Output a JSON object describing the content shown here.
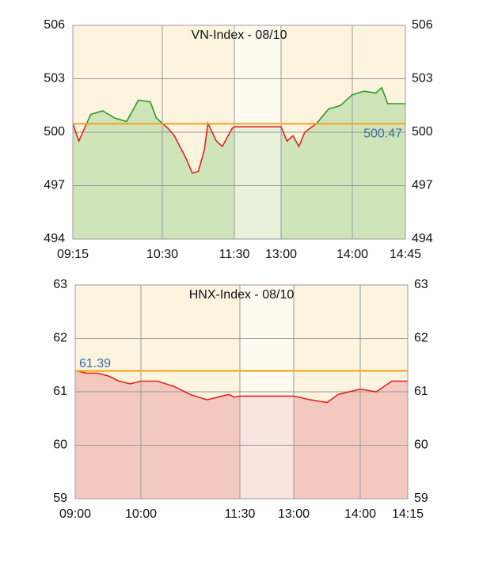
{
  "chart_data": [
    {
      "type": "line",
      "title": "VN-Index - 08/10",
      "x": [
        "09:15",
        "09:20",
        "09:30",
        "09:40",
        "09:50",
        "10:00",
        "10:10",
        "10:20",
        "10:25",
        "10:30",
        "10:35",
        "10:40",
        "10:50",
        "10:55",
        "11:00",
        "11:05",
        "11:08",
        "11:15",
        "11:20",
        "11:28",
        "11:30",
        "13:00",
        "13:05",
        "13:10",
        "13:15",
        "13:20",
        "13:30",
        "13:40",
        "13:50",
        "14:00",
        "14:10",
        "14:20",
        "14:25",
        "14:30",
        "14:45"
      ],
      "values": [
        500.5,
        499.5,
        501.0,
        501.2,
        500.8,
        500.6,
        501.8,
        501.7,
        500.8,
        500.5,
        500.2,
        499.8,
        498.5,
        497.7,
        497.8,
        499.0,
        500.5,
        499.5,
        499.2,
        500.2,
        500.3,
        500.3,
        499.5,
        499.8,
        499.2,
        500.0,
        500.5,
        501.3,
        501.5,
        502.1,
        502.3,
        502.2,
        502.5,
        501.6,
        501.6
      ],
      "reference": 500.47,
      "up_color": "#2e9a22",
      "down_color": "#e3231c",
      "fill_color": "#cfe5b9",
      "reference_color": "#f2a21f",
      "ylim": [
        494,
        506
      ],
      "yticks": [
        494,
        497,
        500,
        503,
        506
      ],
      "xticks": [
        "09:15",
        "10:30",
        "11:30",
        "13:00",
        "14:00",
        "14:45"
      ],
      "grid": true
    },
    {
      "type": "line",
      "title": "HNX-Index - 08/10",
      "x": [
        "09:00",
        "09:10",
        "09:20",
        "09:30",
        "09:40",
        "09:50",
        "10:00",
        "10:15",
        "10:30",
        "10:45",
        "11:00",
        "11:10",
        "11:20",
        "11:25",
        "11:30",
        "13:00",
        "13:15",
        "13:30",
        "13:40",
        "13:50",
        "14:00",
        "14:05",
        "14:10",
        "14:15"
      ],
      "values": [
        61.4,
        61.35,
        61.35,
        61.3,
        61.2,
        61.15,
        61.2,
        61.2,
        61.1,
        60.95,
        60.85,
        60.9,
        60.95,
        60.9,
        60.92,
        60.92,
        60.85,
        60.8,
        60.95,
        61.0,
        61.05,
        61.0,
        61.2,
        61.2
      ],
      "reference": 61.39,
      "up_color": "#2e9a22",
      "down_color": "#e3231c",
      "fill_color": "#f3c9bf",
      "reference_color": "#f2a21f",
      "ylim": [
        59,
        63
      ],
      "yticks": [
        59,
        60,
        61,
        62,
        63
      ],
      "xticks": [
        "09:00",
        "10:00",
        "11:30",
        "13:00",
        "14:00",
        "14:15"
      ],
      "grid": true
    }
  ]
}
